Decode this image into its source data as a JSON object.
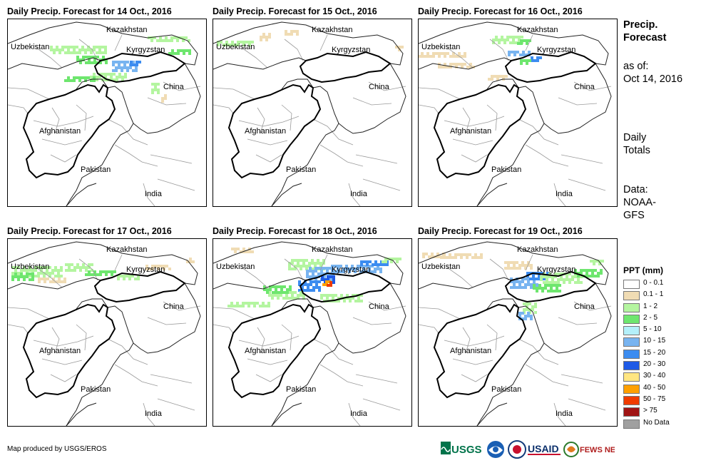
{
  "panels": [
    {
      "title": "Daily Precip. Forecast for 14 Oct., 2016"
    },
    {
      "title": "Daily Precip. Forecast for 15 Oct., 2016"
    },
    {
      "title": "Daily Precip. Forecast for 16 Oct., 2016"
    },
    {
      "title": "Daily Precip. Forecast for 17 Oct., 2016"
    },
    {
      "title": "Daily Precip. Forecast for 18 Oct., 2016"
    },
    {
      "title": "Daily Precip. Forecast for 19 Oct., 2016"
    }
  ],
  "map_labels": {
    "kazakhstan": "Kazakhstan",
    "uzbekistan": "Uzbekistan",
    "kyrgyzstan": "Kyrgyzstan",
    "china": "China",
    "afghanistan": "Afghanistan",
    "pakistan": "Pakistan",
    "india": "India"
  },
  "side": {
    "title_line1": "Precip.",
    "title_line2": "Forecast",
    "asof_line1": "as of:",
    "asof_line2": "Oct 14, 2016",
    "daily_line1": "Daily",
    "daily_line2": "Totals",
    "data_line1": "Data:",
    "data_line2": "NOAA-",
    "data_line3": "GFS"
  },
  "legend": {
    "title": "PPT (mm)",
    "items": [
      {
        "label": "0 - 0.1",
        "color": "#ffffff"
      },
      {
        "label": "0.1 - 1",
        "color": "#f0dcb4"
      },
      {
        "label": "1 - 2",
        "color": "#b4f5a0"
      },
      {
        "label": "2 - 5",
        "color": "#6ee66e"
      },
      {
        "label": "5 - 10",
        "color": "#b4f0fa"
      },
      {
        "label": "10 - 15",
        "color": "#78b4f0"
      },
      {
        "label": "15 - 20",
        "color": "#3c8cf0"
      },
      {
        "label": "20 - 30",
        "color": "#1e5ae6"
      },
      {
        "label": "30 - 40",
        "color": "#ffe682"
      },
      {
        "label": "40 - 50",
        "color": "#ffa000"
      },
      {
        "label": "50 - 75",
        "color": "#f03c00"
      },
      {
        "label": "> 75",
        "color": "#a01414"
      },
      {
        "label": "No Data",
        "color": "#a0a0a0"
      }
    ]
  },
  "credit": "Map produced by USGS/EROS",
  "logos": [
    {
      "name": "usgs-logo",
      "text": "USGS"
    },
    {
      "name": "noaa-logo",
      "text": ""
    },
    {
      "name": "usaid-seal-logo",
      "text": ""
    },
    {
      "name": "usaid-logo",
      "text": "USAID"
    },
    {
      "name": "fewsnet-logo",
      "text": "FEWS NET"
    }
  ]
}
